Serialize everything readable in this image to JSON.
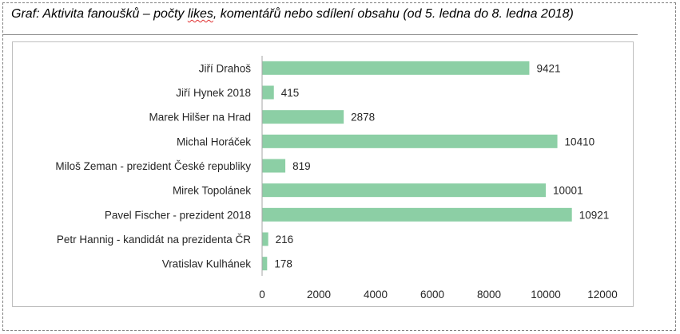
{
  "title": {
    "before": "Graf: Aktivita fanoušků – počty ",
    "flagged": "likes",
    "after": ", komentářů nebo sdílení obsahu (od 5. ledna do 8. ledna 2018)"
  },
  "colors": {
    "bar": "#8ccfa5",
    "axis": "#a6a6a6",
    "text": "#262626",
    "spell": "#e03030"
  },
  "chart_data": {
    "type": "bar",
    "orientation": "horizontal",
    "categories": [
      "Jiří Drahoš",
      "Jiří Hynek 2018",
      "Marek Hilšer na Hrad",
      "Michal Horáček",
      "Miloš Zeman - prezident České republiky",
      "Mirek Topolánek",
      "Pavel Fischer - prezident 2018",
      "Petr Hannig - kandidát na prezidenta ČR",
      "Vratislav Kulhánek"
    ],
    "values": [
      9421,
      415,
      2878,
      10410,
      819,
      10001,
      10921,
      216,
      178
    ],
    "data_labels": [
      "9421",
      "415",
      "2878",
      "10410",
      "819",
      "10001",
      "10921",
      "216",
      "178"
    ],
    "xlim": [
      0,
      12000
    ],
    "x_ticks": [
      0,
      2000,
      4000,
      6000,
      8000,
      10000,
      12000
    ],
    "x_tick_labels": [
      "0",
      "2000",
      "4000",
      "6000",
      "8000",
      "10000",
      "12000"
    ],
    "grid": false,
    "legend": "none"
  }
}
